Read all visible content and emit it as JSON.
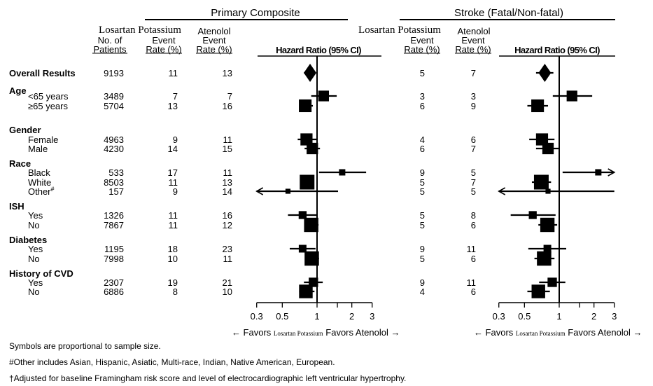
{
  "chart_data": [
    {
      "type": "forest",
      "title": "Primary Composite",
      "columns": {
        "group_label": "Losartan Potassium",
        "n_patients": "No. of Patients",
        "losartan_rate": "Event Rate (%)",
        "atenolol_group_label": "Atenolol",
        "atenolol_rate": "Event Rate (%)",
        "hazard_ratio": "Hazard Ratio (95% CI)"
      },
      "x_axis": {
        "scale": "log",
        "range": [
          0.3,
          3
        ],
        "ticks": [
          0.3,
          0.5,
          1,
          2,
          3
        ],
        "tick_labels": [
          "0.3",
          "0.5",
          "1",
          "2",
          "3"
        ],
        "reference": 1
      },
      "favors_left": "Favors",
      "favors_left_drug": "Losartan Potassium",
      "favors_right": "Favors Atenolol",
      "rows": [
        {
          "label": "Overall Results",
          "n": "9193",
          "losartan": "11",
          "atenolol": "13",
          "hr": 0.87,
          "lo": 0.77,
          "hi": 0.98,
          "marker": "diamond"
        },
        {
          "label": "<65 years",
          "n": "3489",
          "losartan": "7",
          "atenolol": "7",
          "hr": 1.14,
          "lo": 0.89,
          "hi": 1.48
        },
        {
          "label": "≥65 years",
          "n": "5704",
          "losartan": "13",
          "atenolol": "16",
          "hr": 0.79,
          "lo": 0.7,
          "hi": 0.92
        },
        {
          "label": "Female",
          "n": "4963",
          "losartan": "9",
          "atenolol": "11",
          "hr": 0.81,
          "lo": 0.68,
          "hi": 0.99
        },
        {
          "label": "Male",
          "n": "4230",
          "losartan": "14",
          "atenolol": "15",
          "hr": 0.91,
          "lo": 0.78,
          "hi": 1.06
        },
        {
          "label": "Black",
          "n": "533",
          "losartan": "17",
          "atenolol": "11",
          "hr": 1.65,
          "lo": 1.04,
          "hi": 2.66
        },
        {
          "label": "White",
          "n": "8503",
          "losartan": "11",
          "atenolol": "13",
          "hr": 0.82,
          "lo": 0.74,
          "hi": 0.92
        },
        {
          "label": "Other#",
          "n": "157",
          "losartan": "9",
          "atenolol": "14",
          "hr": 0.56,
          "lo": 0.2,
          "hi": 1.52
        },
        {
          "label": "Yes",
          "n": "1326",
          "losartan": "11",
          "atenolol": "16",
          "hr": 0.75,
          "lo": 0.56,
          "hi": 1.0
        },
        {
          "label": "No",
          "n": "7867",
          "losartan": "11",
          "atenolol": "12",
          "hr": 0.89,
          "lo": 0.79,
          "hi": 1.03
        },
        {
          "label": "Yes",
          "n": "1195",
          "losartan": "18",
          "atenolol": "23",
          "hr": 0.75,
          "lo": 0.58,
          "hi": 0.97
        },
        {
          "label": "No",
          "n": "7998",
          "losartan": "10",
          "atenolol": "11",
          "hr": 0.9,
          "lo": 0.8,
          "hi": 1.04
        },
        {
          "label": "Yes",
          "n": "2307",
          "losartan": "19",
          "atenolol": "21",
          "hr": 0.93,
          "lo": 0.77,
          "hi": 1.12
        },
        {
          "label": "No",
          "n": "6886",
          "losartan": "8",
          "atenolol": "10",
          "hr": 0.8,
          "lo": 0.7,
          "hi": 0.95
        }
      ]
    },
    {
      "type": "forest",
      "title": "Stroke (Fatal/Non-fatal)",
      "columns": {
        "group_label": "Losartan Potassium",
        "losartan_rate": "Event Rate (%)",
        "atenolol_group_label": "Atenolol",
        "atenolol_rate": "Event Rate (%)",
        "hazard_ratio": "Hazard Ratio (95% CI)"
      },
      "x_axis": {
        "scale": "log",
        "range": [
          0.3,
          3
        ],
        "ticks": [
          0.3,
          0.5,
          1,
          2,
          3
        ],
        "tick_labels": [
          "0.3",
          "0.5",
          "1",
          "2",
          "3"
        ],
        "reference": 1
      },
      "favors_left": "Favors",
      "favors_left_drug": "Losartan Potassium",
      "favors_right": "Favors Atenolol",
      "rows": [
        {
          "losartan": "5",
          "atenolol": "7",
          "hr": 0.75,
          "lo": 0.63,
          "hi": 0.89,
          "marker": "diamond"
        },
        {
          "losartan": "3",
          "atenolol": "3",
          "hr": 1.29,
          "lo": 0.88,
          "hi": 1.93
        },
        {
          "losartan": "6",
          "atenolol": "9",
          "hr": 0.65,
          "lo": 0.53,
          "hi": 0.8
        },
        {
          "losartan": "4",
          "atenolol": "6",
          "hr": 0.71,
          "lo": 0.55,
          "hi": 0.91
        },
        {
          "losartan": "6",
          "atenolol": "7",
          "hr": 0.8,
          "lo": 0.63,
          "hi": 1.01
        },
        {
          "losartan": "9",
          "atenolol": "5",
          "hr": 2.18,
          "lo": 1.07,
          "hi": 4.5
        },
        {
          "losartan": "5",
          "atenolol": "7",
          "hr": 0.7,
          "lo": 0.58,
          "hi": 0.85
        },
        {
          "losartan": "5",
          "atenolol": "5",
          "hr": 0.8,
          "lo": 0.2,
          "hi": 3.0
        },
        {
          "losartan": "5",
          "atenolol": "8",
          "hr": 0.59,
          "lo": 0.38,
          "hi": 0.93
        },
        {
          "losartan": "5",
          "atenolol": "6",
          "hr": 0.79,
          "lo": 0.66,
          "hi": 0.96
        },
        {
          "losartan": "9",
          "atenolol": "11",
          "hr": 0.79,
          "lo": 0.54,
          "hi": 1.15
        },
        {
          "losartan": "5",
          "atenolol": "6",
          "hr": 0.74,
          "lo": 0.61,
          "hi": 0.91
        },
        {
          "losartan": "9",
          "atenolol": "11",
          "hr": 0.87,
          "lo": 0.67,
          "hi": 1.13
        },
        {
          "losartan": "4",
          "atenolol": "6",
          "hr": 0.66,
          "lo": 0.53,
          "hi": 0.83
        }
      ]
    }
  ],
  "groups": {
    "age": "Age",
    "gender": "Gender",
    "race": "Race",
    "ish": "ISH",
    "diabetes": "Diabetes",
    "cvd": "History of CVD"
  },
  "footnotes": [
    "Symbols are proportional to sample size.",
    "#Other includes Asian, Hispanic, Asiatic, Multi-race, Indian, Native American, European.",
    "†Adjusted for baseline Framingham risk score and level of electrocardiographic left ventricular hypertrophy."
  ],
  "colors": {
    "ink": "#000000",
    "background": "#ffffff"
  }
}
